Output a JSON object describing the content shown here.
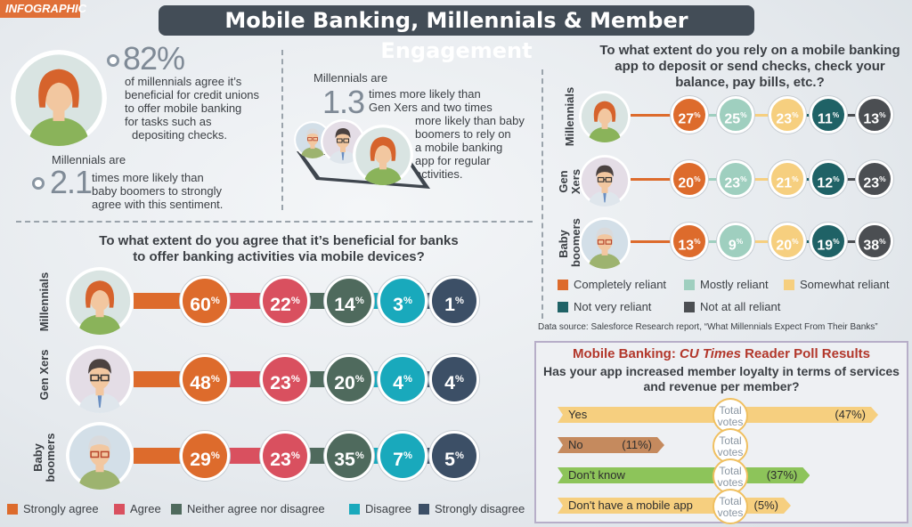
{
  "tag": "INFOGRAPHIC",
  "title": "Mobile Banking, Millennials & Member Engagement",
  "stat1": {
    "value": "82%",
    "text": [
      "of millennials agree it’s",
      "beneficial for credit unions",
      "to offer mobile banking",
      "for tasks such as",
      "depositing checks."
    ]
  },
  "stat2": {
    "prefix": "Millennials are",
    "value": "2.1",
    "text": [
      "times more likely than",
      "baby boomers to strongly",
      "agree with this sentiment."
    ]
  },
  "stat3": {
    "prefix": "Millennials are",
    "value": "1.3",
    "text": [
      "times more likely than",
      "Gen Xers and two times",
      "more likely than baby",
      "boomers to rely on",
      "a mobile banking",
      "app for regular",
      "activities."
    ]
  },
  "colors": {
    "orange": "#dd6b2c",
    "red": "#d9505f",
    "darkgreen": "#4f6a5d",
    "cyan": "#19a9bc",
    "navy": "#3c4f66",
    "mint": "#9fcfbf",
    "yellow": "#f6cf7f",
    "teal": "#1f6266",
    "charcoal": "#4b4e52"
  },
  "chart_data": [
    {
      "type": "bar",
      "title": "To what extent do you agree that it’s beneficial for banks to offer banking activities via mobile devices?",
      "categories": [
        "Millennials",
        "Gen Xers",
        "Baby boomers"
      ],
      "series": [
        {
          "name": "Strongly agree",
          "values": [
            60,
            48,
            29
          ]
        },
        {
          "name": "Agree",
          "values": [
            22,
            23,
            23
          ]
        },
        {
          "name": "Neither agree nor disagree",
          "values": [
            14,
            20,
            35
          ]
        },
        {
          "name": "Disagree",
          "values": [
            3,
            4,
            7
          ]
        },
        {
          "name": "Strongly disagree",
          "values": [
            1,
            4,
            5
          ]
        }
      ],
      "legend": "bottom"
    },
    {
      "type": "bar",
      "title": "To what extent do you rely on a mobile banking app to deposit or send checks, check your balance, pay bills, etc.?",
      "categories": [
        "Millennials",
        "Gen Xers",
        "Baby boomers"
      ],
      "series": [
        {
          "name": "Completely reliant",
          "values": [
            27,
            20,
            13
          ]
        },
        {
          "name": "Mostly reliant",
          "values": [
            25,
            23,
            9
          ]
        },
        {
          "name": "Somewhat reliant",
          "values": [
            23,
            21,
            20
          ]
        },
        {
          "name": "Not very reliant",
          "values": [
            11,
            12,
            19
          ]
        },
        {
          "name": "Not at all reliant",
          "values": [
            13,
            23,
            38
          ]
        }
      ],
      "legend": "bottom",
      "source": "Data source: Salesforce Research report, “What Millennials Expect From Their Banks”"
    },
    {
      "type": "bar",
      "title_prefix": "Mobile Banking: ",
      "title_italic": "CU Times",
      "title_suffix": " Reader Poll Results",
      "question": [
        "Has your app increased member loyalty in terms of services",
        "and revenue per member?"
      ],
      "categories": [
        "Yes",
        "No",
        "Don't know",
        "Don't have a mobile app"
      ],
      "values": [
        47,
        11,
        37,
        5
      ],
      "labels": [
        "(47%)",
        "(11%)",
        "(37%)",
        "(5%)"
      ],
      "center_label": [
        "Total",
        "votes"
      ]
    }
  ]
}
